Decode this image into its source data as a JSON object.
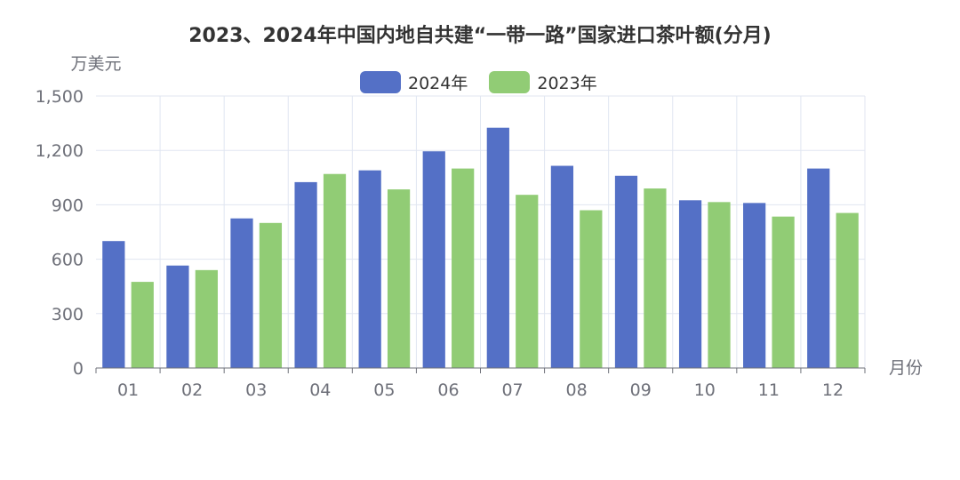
{
  "title": "2023、2024年中国内地自共建“一带一路”国家进口茶叶额(分月)",
  "y_axis_name": "万美元",
  "x_axis_name": "月份",
  "colors": {
    "series_2024": "#5470c6",
    "series_2023": "#91cc75",
    "axis": "#6e7079",
    "grid": "#e0e6f1"
  },
  "chart_data": {
    "type": "bar",
    "title": "2023、2024年中国内地自共建“一带一路”国家进口茶叶额(分月)",
    "xlabel": "月份",
    "ylabel": "万美元",
    "ylim": [
      0,
      1500
    ],
    "yticks": [
      "0",
      "300",
      "600",
      "900",
      "1,200",
      "1,500"
    ],
    "categories": [
      "01",
      "02",
      "03",
      "04",
      "05",
      "06",
      "07",
      "08",
      "09",
      "10",
      "11",
      "12"
    ],
    "series": [
      {
        "name": "2024年",
        "values": [
          700,
          565,
          825,
          1025,
          1090,
          1195,
          1325,
          1115,
          1060,
          925,
          910,
          1100
        ]
      },
      {
        "name": "2023年",
        "values": [
          475,
          540,
          800,
          1070,
          985,
          1100,
          955,
          870,
          990,
          915,
          835,
          855
        ]
      }
    ],
    "legend": "top-center",
    "grid": true
  }
}
